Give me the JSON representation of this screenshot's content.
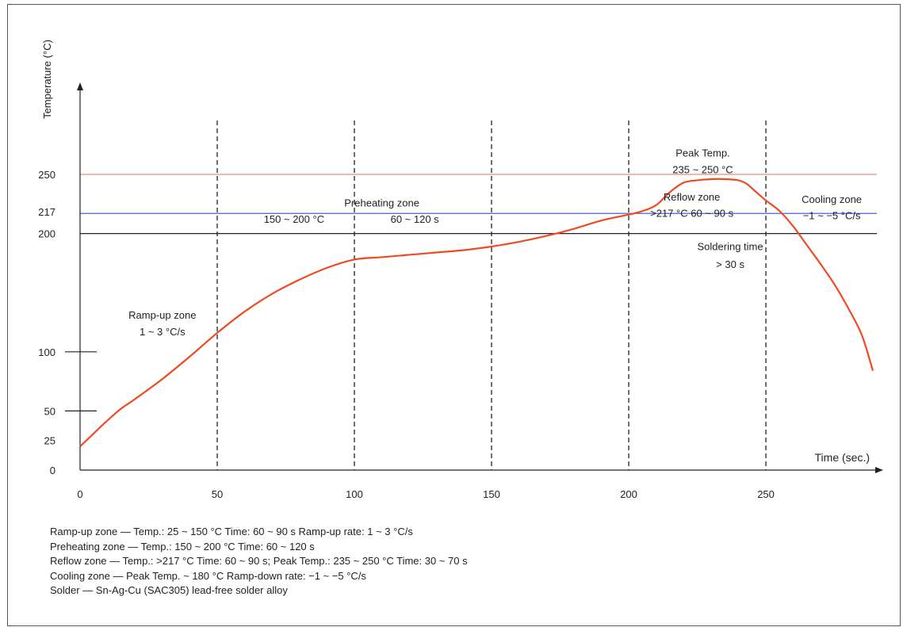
{
  "chart_data": {
    "type": "line",
    "xlabel": "Time (sec.)",
    "ylabel": "Temperature (°C)",
    "xlim": [
      0,
      289
    ],
    "ylim": [
      0,
      300
    ],
    "x_ticks": [
      0,
      50,
      100,
      150,
      200,
      250
    ],
    "y_ticks": [
      {
        "value": 0,
        "label": "0"
      },
      {
        "value": 25,
        "label": "25"
      },
      {
        "value": 50,
        "label": "50"
      },
      {
        "value": 100,
        "label": "100"
      },
      {
        "value": 200,
        "label": "200"
      },
      {
        "value": 217,
        "label": "217"
      },
      {
        "value": 250,
        "label": "250"
      }
    ],
    "zone_boundaries": [
      50,
      100,
      150,
      200,
      250
    ],
    "reference_lines": [
      {
        "value": 250,
        "color": "#f08a6e"
      },
      {
        "value": 217,
        "color": "#4466dd"
      },
      {
        "value": 200,
        "color": "#222222"
      }
    ],
    "series": [
      {
        "color": "#f04a24",
        "x": [
          0,
          5,
          10,
          15,
          20,
          30,
          40,
          50,
          60,
          70,
          80,
          90,
          100,
          110,
          120,
          130,
          140,
          150,
          160,
          170,
          180,
          190,
          200,
          205,
          210,
          215,
          220,
          225,
          230,
          235,
          240,
          243,
          246,
          250,
          255,
          260,
          265,
          270,
          275,
          280,
          285,
          289
        ],
        "y": [
          20,
          31,
          42,
          52,
          60,
          77,
          96,
          116,
          134,
          149,
          161,
          171,
          178,
          180,
          182,
          184,
          186,
          189,
          193,
          198,
          204,
          211,
          216,
          219,
          224,
          235,
          243,
          245,
          246,
          246,
          245,
          242,
          236,
          228,
          219,
          206,
          190,
          174,
          157,
          137,
          114,
          84
        ]
      }
    ],
    "annotations": [
      {
        "id": "preheating_title",
        "text": "Preheating zone",
        "x": 110,
        "y": 223
      },
      {
        "id": "preheating_temp",
        "text": "150 ~ 200 °C",
        "x": 78,
        "y": 209
      },
      {
        "id": "preheating_time",
        "text": "60 ~ 120 s",
        "x": 122,
        "y": 209
      },
      {
        "id": "ramp_title",
        "text": "Ramp-up zone",
        "x": 30,
        "y": 128
      },
      {
        "id": "ramp_rate",
        "text": "1 ~ 3 °C/s",
        "x": 30,
        "y": 114
      },
      {
        "id": "peak_title",
        "text": "Peak Temp.",
        "x": 227,
        "y": 265
      },
      {
        "id": "peak_range",
        "text": "235 ~ 250 °C",
        "x": 227,
        "y": 251
      },
      {
        "id": "reflow_title",
        "text": "Reflow zone",
        "x": 223,
        "y": 228
      },
      {
        "id": "reflow_spec",
        "text": ">217 °C  60 ~ 90 s",
        "x": 223,
        "y": 214
      },
      {
        "id": "soldering_title",
        "text": "Soldering time",
        "x": 237,
        "y": 186
      },
      {
        "id": "soldering_value",
        "text": "> 30 s",
        "x": 237,
        "y": 171
      },
      {
        "id": "cooling_title",
        "text": "Cooling zone",
        "x": 274,
        "y": 226
      },
      {
        "id": "cooling_rate",
        "text": "−1 ~ −5 °C/s",
        "x": 274,
        "y": 212
      }
    ]
  },
  "notes": [
    {
      "key": "Ramp-up zone",
      "text": " — Temp.: 25 ~ 150 °C  Time: 60 ~ 90 s  Ramp-up rate: 1 ~ 3 °C/s"
    },
    {
      "key": "Preheating zone",
      "text": " — Temp.: 150 ~ 200 °C  Time: 60 ~ 120 s"
    },
    {
      "key": "Reflow zone",
      "text": " — Temp.: >217 °C  Time: 60 ~ 90 s; Peak Temp.: 235 ~ 250 °C  Time: 30 ~ 70 s"
    },
    {
      "key": "Cooling zone",
      "text": " — Peak Temp. ~ 180 °C  Ramp-down rate: −1 ~ −5 °C/s"
    },
    {
      "key": "Solder",
      "text": " — Sn-Ag-Cu (SAC305) lead-free solder alloy"
    }
  ]
}
